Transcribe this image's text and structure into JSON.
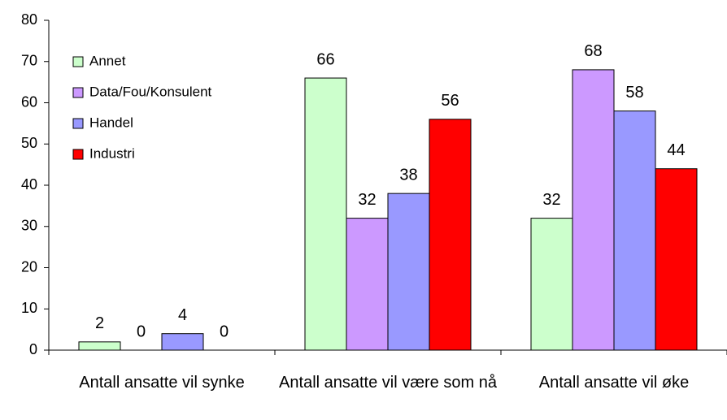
{
  "chart_data": {
    "type": "bar",
    "categories": [
      "Antall ansatte vil synke",
      "Antall ansatte vil være som nå",
      "Antall ansatte vil øke"
    ],
    "series": [
      {
        "name": "Annet",
        "color": "#ccffcc",
        "values": [
          2,
          66,
          32
        ]
      },
      {
        "name": "Data/Fou/Konsulent",
        "color": "#cc99ff",
        "values": [
          0,
          32,
          68
        ]
      },
      {
        "name": "Handel",
        "color": "#9999ff",
        "values": [
          4,
          38,
          58
        ]
      },
      {
        "name": "Industri",
        "color": "#ff0000",
        "values": [
          0,
          56,
          44
        ]
      }
    ],
    "ylim": [
      0,
      80
    ],
    "yticks": [
      0,
      10,
      20,
      30,
      40,
      50,
      60,
      70,
      80
    ],
    "grid": false,
    "legend": "upper left"
  }
}
